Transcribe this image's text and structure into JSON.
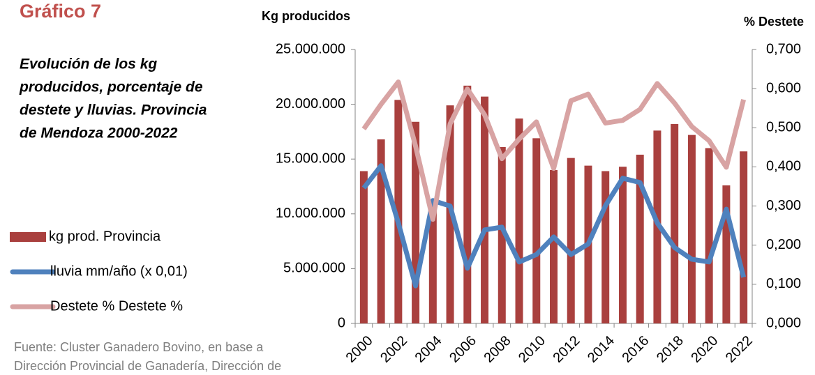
{
  "chart_data": {
    "type": "bar_line_combo",
    "title": "Gráfico 7",
    "subtitle": [
      "Evolución de los kg",
      "producidos, porcentaje  de",
      "destete y lluvias. Provincia",
      "de Mendoza 2000-2022"
    ],
    "y_label": "Kg producidos",
    "y2_label": "% Destete",
    "source": [
      "Fuente: Cluster Ganadero Bovino, en base a",
      "Dirección Provincial de Ganadería, Dirección de"
    ],
    "categories": [
      "2000",
      null,
      "2002",
      null,
      "2004",
      null,
      "2006",
      null,
      "2008",
      null,
      "2010",
      null,
      "2012",
      null,
      "2014",
      null,
      "2016",
      null,
      "2018",
      null,
      "2020",
      null,
      "2022"
    ],
    "series": [
      {
        "name": "kg prod. Provincia",
        "type": "bar",
        "color": "#a9403e",
        "values": [
          13900000,
          16800000,
          20400000,
          18400000,
          11200000,
          19900000,
          21700000,
          20700000,
          16100000,
          18700000,
          16900000,
          14000000,
          15100000,
          14400000,
          13900000,
          14300000,
          15400000,
          17600000,
          18200000,
          17200000,
          16000000,
          12600000,
          15700000
        ]
      },
      {
        "name": "lluvia mm/año (x 0,01)",
        "type": "line",
        "axis": "y2",
        "color": "#4f81bd",
        "values": [
          0.346,
          0.403,
          0.257,
          0.096,
          0.314,
          0.3,
          0.141,
          0.239,
          0.246,
          0.157,
          0.176,
          0.221,
          0.176,
          0.203,
          0.301,
          0.371,
          0.36,
          0.257,
          0.194,
          0.164,
          0.157,
          0.292,
          0.118
        ]
      },
      {
        "name": "Destete % Destete %",
        "type": "line",
        "axis": "y2",
        "color": "#d8a3a3",
        "values": [
          0.497,
          0.56,
          0.617,
          0.453,
          0.266,
          0.51,
          0.599,
          0.533,
          0.421,
          0.471,
          0.515,
          0.396,
          0.569,
          0.586,
          0.512,
          0.519,
          0.547,
          0.613,
          0.563,
          0.503,
          0.467,
          0.399,
          0.572
        ]
      }
    ],
    "ylim": [
      0,
      25000000
    ],
    "yticks": [
      0,
      {
        "value": 5000000,
        "label": "5.000.000"
      },
      {
        "value": 10000000,
        "label": "10.000.000"
      },
      {
        "value": 15000000,
        "label": "15.000.000"
      },
      {
        "value": 20000000,
        "label": "20.000.000"
      },
      {
        "value": 25000000,
        "label": "25.000.000"
      }
    ],
    "y2lim": [
      0,
      0.7
    ],
    "y2ticks": [
      {
        "value": 0,
        "label": "0,000"
      },
      {
        "value": 0.1,
        "label": "0,100"
      },
      {
        "value": 0.2,
        "label": "0,200"
      },
      {
        "value": 0.3,
        "label": "0,300"
      },
      {
        "value": 0.4,
        "label": "0,400"
      },
      {
        "value": 0.5,
        "label": "0,500"
      },
      {
        "value": 0.6,
        "label": "0,600"
      },
      {
        "value": 0.7,
        "label": "0,700"
      }
    ],
    "grid": false,
    "legend_position": "left"
  }
}
